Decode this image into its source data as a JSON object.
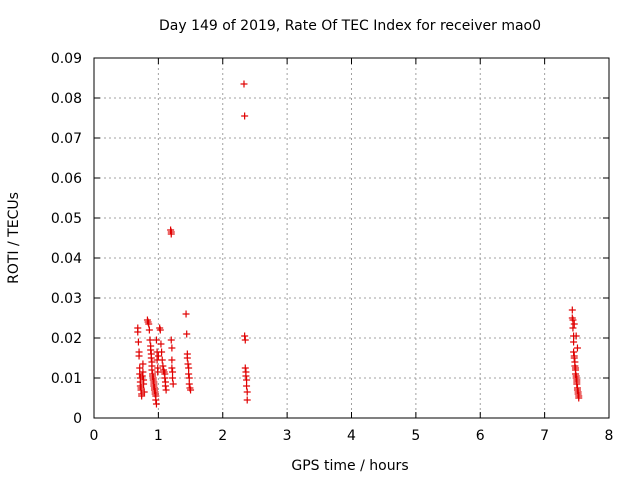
{
  "chart_data": {
    "type": "scatter",
    "title": "Day 149 of 2019, Rate Of TEC Index for receiver mao0",
    "xlabel": "GPS time / hours",
    "ylabel": "ROTI / TECUs",
    "xlim": [
      0,
      8
    ],
    "ylim": [
      0,
      0.09
    ],
    "xticks": [
      0,
      1,
      2,
      3,
      4,
      5,
      6,
      7,
      8
    ],
    "yticks": [
      0,
      0.01,
      0.02,
      0.03,
      0.04,
      0.05,
      0.06,
      0.07,
      0.08,
      0.09
    ],
    "xtick_labels": [
      "0",
      "1",
      "2",
      "3",
      "4",
      "5",
      "6",
      "7",
      "8"
    ],
    "ytick_labels": [
      "0",
      "0.01",
      "0.02",
      "0.03",
      "0.04",
      "0.05",
      "0.06",
      "0.07",
      "0.08",
      "0.09"
    ],
    "grid": true,
    "marker": "+",
    "color": "#e00000",
    "series": [
      {
        "name": "mao0",
        "x": [
          0.68,
          0.68,
          0.69,
          0.7,
          0.7,
          0.71,
          0.71,
          0.72,
          0.72,
          0.72,
          0.73,
          0.73,
          0.74,
          0.74,
          0.75,
          0.76,
          0.76,
          0.77,
          0.77,
          0.78,
          0.83,
          0.84,
          0.85,
          0.86,
          0.87,
          0.88,
          0.88,
          0.89,
          0.89,
          0.9,
          0.9,
          0.9,
          0.91,
          0.91,
          0.92,
          0.92,
          0.93,
          0.93,
          0.93,
          0.94,
          0.94,
          0.95,
          0.95,
          0.96,
          0.96,
          0.97,
          0.97,
          0.98,
          0.98,
          0.99,
          0.99,
          1.0,
          1.02,
          1.03,
          1.04,
          1.05,
          1.06,
          1.07,
          1.08,
          1.09,
          1.1,
          1.1,
          1.11,
          1.11,
          1.12,
          1.19,
          1.2,
          1.2,
          1.2,
          1.21,
          1.21,
          1.21,
          1.22,
          1.22,
          1.23,
          1.43,
          1.44,
          1.45,
          1.45,
          1.46,
          1.47,
          1.47,
          1.48,
          1.48,
          1.49,
          1.5,
          2.33,
          2.34,
          2.34,
          2.35,
          2.35,
          2.36,
          2.36,
          2.37,
          2.37,
          2.38,
          2.38,
          7.43,
          7.43,
          7.44,
          7.44,
          7.45,
          7.45,
          7.45,
          7.46,
          7.46,
          7.47,
          7.47,
          7.48,
          7.48,
          7.48,
          7.49,
          7.49,
          7.5,
          7.5,
          7.5,
          7.51,
          7.51,
          7.52,
          7.52,
          7.53,
          7.53,
          7.46,
          7.49,
          7.51
        ],
        "y": [
          0.0225,
          0.0215,
          0.019,
          0.0165,
          0.0155,
          0.0125,
          0.011,
          0.01,
          0.009,
          0.008,
          0.0075,
          0.007,
          0.006,
          0.0055,
          0.0105,
          0.0115,
          0.0135,
          0.0095,
          0.0085,
          0.0065,
          0.0245,
          0.024,
          0.0235,
          0.022,
          0.0195,
          0.018,
          0.017,
          0.016,
          0.015,
          0.014,
          0.013,
          0.012,
          0.011,
          0.0105,
          0.01,
          0.0095,
          0.009,
          0.0085,
          0.008,
          0.0075,
          0.007,
          0.0065,
          0.006,
          0.0055,
          0.0045,
          0.0035,
          0.0195,
          0.0165,
          0.0145,
          0.0125,
          0.0115,
          0.0155,
          0.0225,
          0.022,
          0.0185,
          0.0165,
          0.0145,
          0.013,
          0.012,
          0.0115,
          0.011,
          0.01,
          0.009,
          0.008,
          0.007,
          0.047,
          0.0465,
          0.046,
          0.0195,
          0.0175,
          0.0145,
          0.0125,
          0.0115,
          0.01,
          0.0085,
          0.026,
          0.021,
          0.016,
          0.015,
          0.0135,
          0.0125,
          0.011,
          0.01,
          0.0085,
          0.0075,
          0.007,
          0.0835,
          0.0755,
          0.0205,
          0.0195,
          0.0125,
          0.0115,
          0.0105,
          0.0095,
          0.008,
          0.0065,
          0.0045,
          0.027,
          0.025,
          0.0245,
          0.0225,
          0.0205,
          0.019,
          0.0165,
          0.0155,
          0.015,
          0.014,
          0.013,
          0.0125,
          0.012,
          0.011,
          0.0105,
          0.01,
          0.0095,
          0.009,
          0.0085,
          0.0075,
          0.007,
          0.0065,
          0.006,
          0.0055,
          0.005,
          0.0235,
          0.0205,
          0.0175
        ]
      }
    ]
  }
}
